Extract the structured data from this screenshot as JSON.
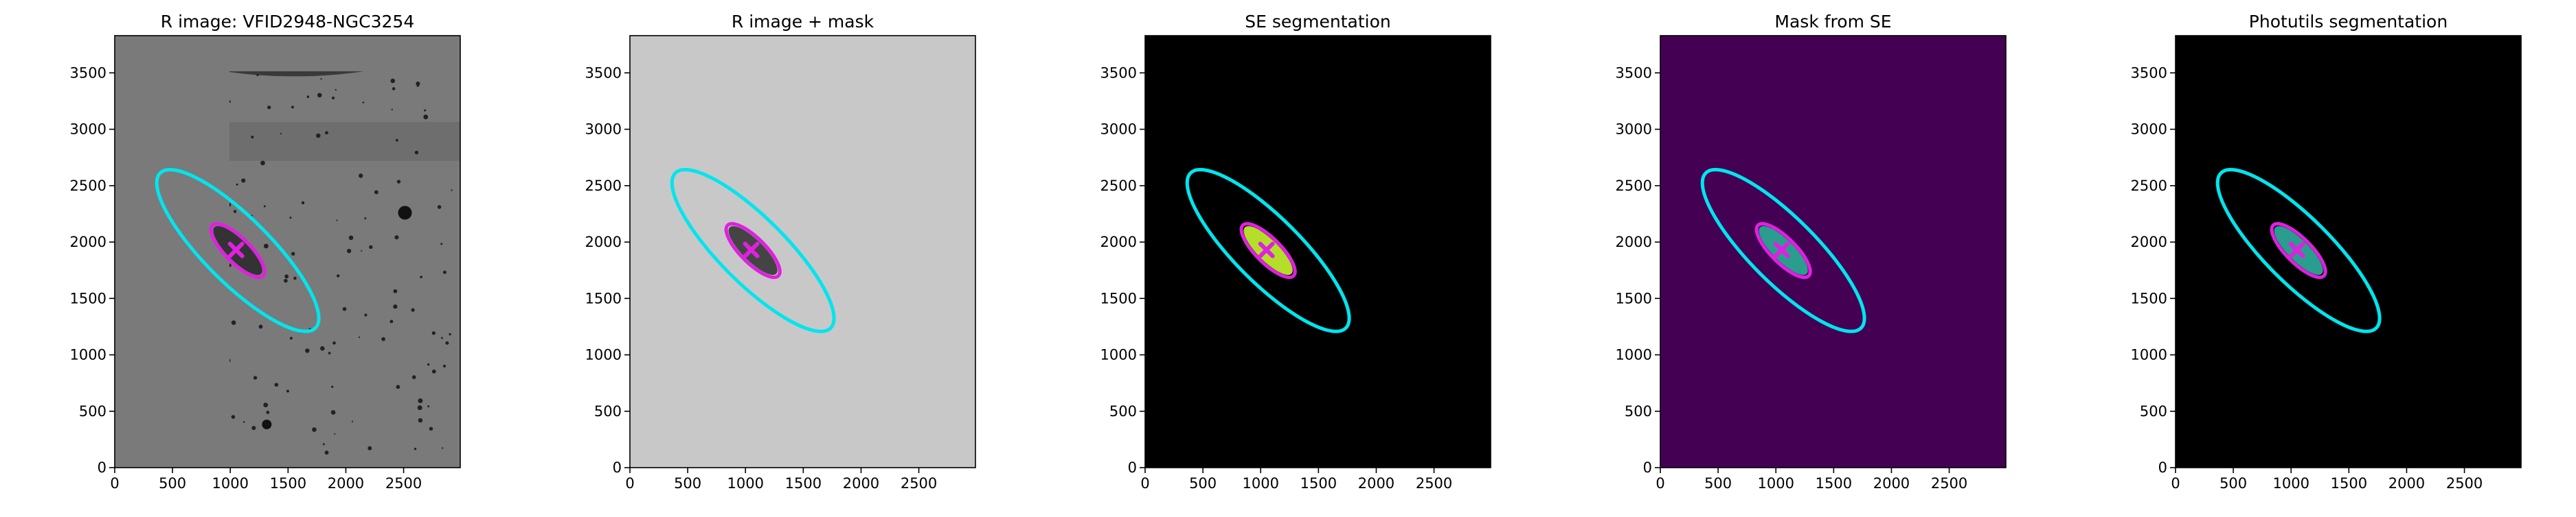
{
  "chart_data": [
    {
      "type": "image",
      "title": "R image: VFID2948-NGC3254",
      "background": "#7a7a7a",
      "xlim": [
        0,
        2990
      ],
      "ylim": [
        0,
        3830
      ],
      "xticks": [
        0,
        500,
        1000,
        1500,
        2000,
        2500
      ],
      "yticks": [
        0,
        500,
        1000,
        1500,
        2000,
        2500,
        3000,
        3500
      ],
      "ellipses": [
        {
          "center": [
            1065,
            1925
          ],
          "a": 950,
          "b": 290,
          "angle": -45,
          "color": "#00e5ee"
        },
        {
          "center": [
            1065,
            1925
          ],
          "a": 310,
          "b": 110,
          "angle": -45,
          "color": "#e020e0"
        }
      ],
      "marker": {
        "x": 1050,
        "y": 1930,
        "color": "#e020e0"
      }
    },
    {
      "type": "image",
      "title": "R image + mask",
      "background": "#c8c8c8",
      "xlim": [
        0,
        2990
      ],
      "ylim": [
        0,
        3830
      ],
      "xticks": [
        0,
        500,
        1000,
        1500,
        2000,
        2500
      ],
      "yticks": [
        0,
        500,
        1000,
        1500,
        2000,
        2500,
        3000,
        3500
      ],
      "ellipses": [
        {
          "center": [
            1065,
            1925
          ],
          "a": 950,
          "b": 290,
          "angle": -45,
          "color": "#00e5ee"
        },
        {
          "center": [
            1065,
            1925
          ],
          "a": 310,
          "b": 110,
          "angle": -45,
          "color": "#e020e0"
        }
      ],
      "marker": {
        "x": 1050,
        "y": 1930,
        "color": "#e020e0"
      }
    },
    {
      "type": "image",
      "title": "SE segmentation",
      "background": "#000000",
      "xlim": [
        0,
        2990
      ],
      "ylim": [
        0,
        3830
      ],
      "xticks": [
        0,
        500,
        1000,
        1500,
        2000,
        2500
      ],
      "yticks": [
        0,
        500,
        1000,
        1500,
        2000,
        2500,
        3000,
        3500
      ],
      "ellipses": [
        {
          "center": [
            1065,
            1925
          ],
          "a": 950,
          "b": 290,
          "angle": -45,
          "color": "#00e5ee"
        },
        {
          "center": [
            1065,
            1925
          ],
          "a": 310,
          "b": 110,
          "angle": -45,
          "color": "#e020e0"
        }
      ],
      "marker": {
        "x": 1050,
        "y": 1930,
        "color": "#e020e0"
      }
    },
    {
      "type": "image",
      "title": "Mask from SE",
      "background": "#440154",
      "xlim": [
        0,
        2990
      ],
      "ylim": [
        0,
        3830
      ],
      "xticks": [
        0,
        500,
        1000,
        1500,
        2000,
        2500
      ],
      "yticks": [
        0,
        500,
        1000,
        1500,
        2000,
        2500,
        3000,
        3500
      ],
      "ellipses": [
        {
          "center": [
            1065,
            1925
          ],
          "a": 950,
          "b": 290,
          "angle": -45,
          "color": "#00e5ee"
        },
        {
          "center": [
            1065,
            1925
          ],
          "a": 310,
          "b": 110,
          "angle": -45,
          "color": "#e020e0"
        }
      ],
      "marker": {
        "x": 1050,
        "y": 1930,
        "color": "#e020e0"
      }
    },
    {
      "type": "image",
      "title": "Photutils segmentation",
      "background": "#000000",
      "xlim": [
        0,
        2990
      ],
      "ylim": [
        0,
        3830
      ],
      "xticks": [
        0,
        500,
        1000,
        1500,
        2000,
        2500
      ],
      "yticks": [
        0,
        500,
        1000,
        1500,
        2000,
        2500,
        3000,
        3500
      ],
      "ellipses": [
        {
          "center": [
            1065,
            1925
          ],
          "a": 950,
          "b": 290,
          "angle": -45,
          "color": "#00e5ee"
        },
        {
          "center": [
            1065,
            1925
          ],
          "a": 310,
          "b": 110,
          "angle": -45,
          "color": "#e020e0"
        }
      ],
      "marker": {
        "x": 1050,
        "y": 1930,
        "color": "#e020e0"
      }
    }
  ]
}
